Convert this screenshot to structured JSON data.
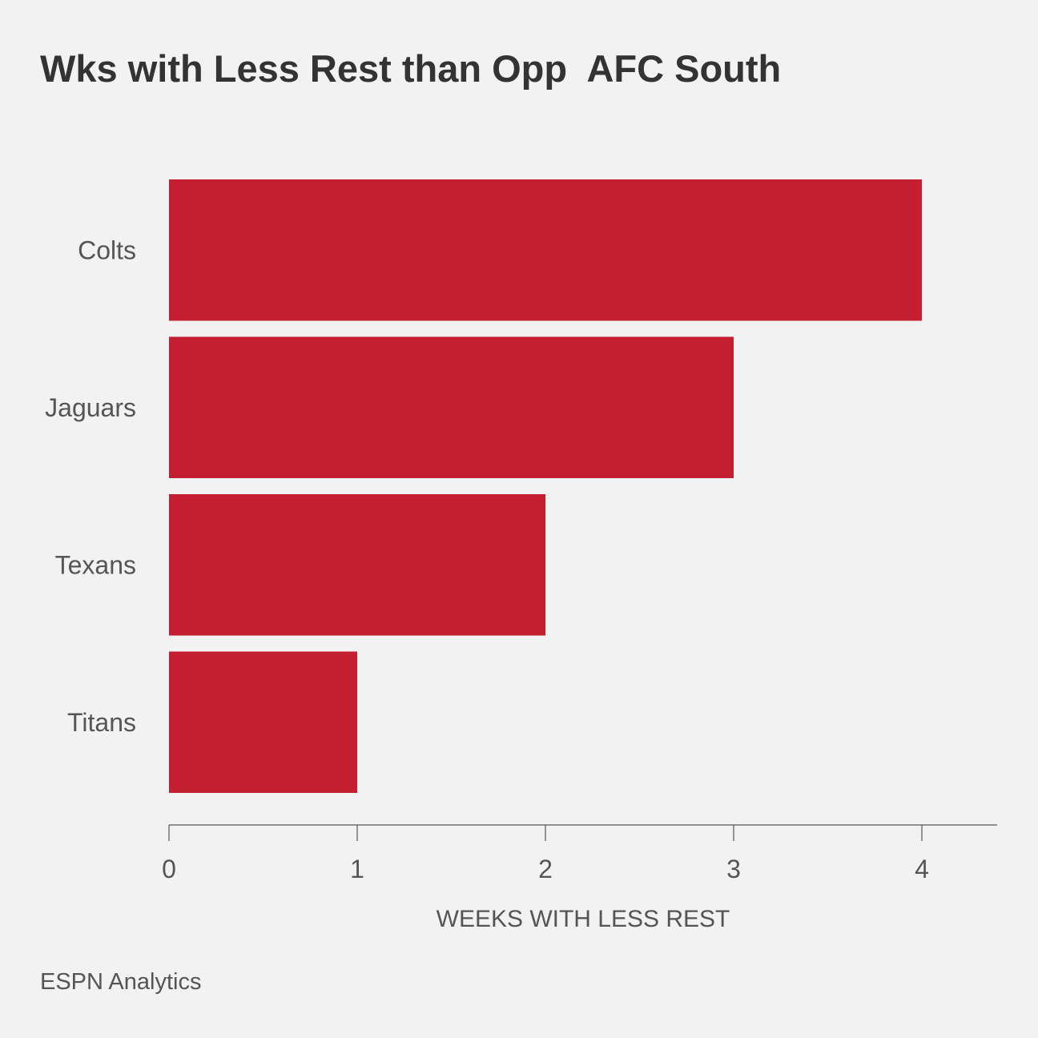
{
  "title": "Wks with Less Rest than Opp  AFC South",
  "source": "ESPN Analytics",
  "colors": {
    "bar": "#c41e31",
    "axis": "#555555",
    "background": "#f2f2f2"
  },
  "chart_data": {
    "type": "bar",
    "orientation": "horizontal",
    "categories": [
      "Colts",
      "Jaguars",
      "Texans",
      "Titans"
    ],
    "values": [
      4,
      3,
      2,
      1
    ],
    "xlabel": "WEEKS WITH LESS REST",
    "ylabel": "",
    "xlim": [
      0,
      4.4
    ],
    "xticks": [
      0,
      1,
      2,
      3,
      4
    ],
    "grid": false
  }
}
